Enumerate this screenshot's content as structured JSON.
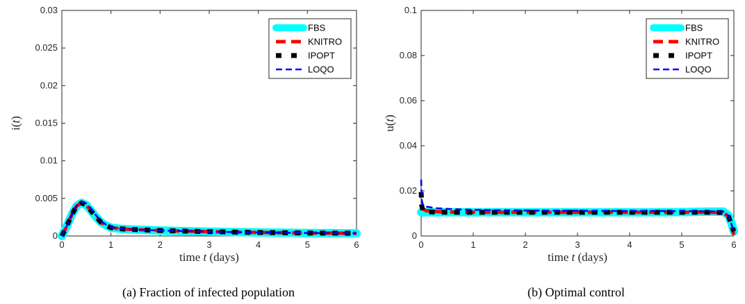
{
  "colors": {
    "FBS": "#00FFFF",
    "KNITRO": "#FF0000",
    "IPOPT": "#000000",
    "LOQO": "#0000FF"
  },
  "chart_data": [
    {
      "type": "line",
      "caption": "(a) Fraction of infected population",
      "xlabel_prefix": "time ",
      "xlabel_var": "t",
      "xlabel_suffix": " (days)",
      "ylabel_fn": "i(",
      "ylabel_var": "t",
      "ylabel_close": ")",
      "xlim": [
        0,
        6
      ],
      "ylim": [
        0,
        0.03
      ],
      "xticks": [
        "0",
        "1",
        "2",
        "3",
        "4",
        "5",
        "6"
      ],
      "yticks": [
        "0",
        "0.005",
        "0.01",
        "0.015",
        "0.02",
        "0.025",
        "0.03"
      ],
      "grid": false,
      "legend": "top-right",
      "series": [
        {
          "name": "FBS",
          "x": [
            0,
            0.1,
            0.2,
            0.3,
            0.4,
            0.5,
            0.6,
            0.7,
            0.8,
            0.9,
            1.0,
            1.2,
            1.4,
            1.6,
            1.8,
            2.0,
            2.5,
            3.0,
            3.5,
            4.0,
            4.5,
            5.0,
            5.5,
            6.0
          ],
          "y": [
            0,
            0.0013,
            0.0028,
            0.004,
            0.0044,
            0.0041,
            0.0033,
            0.0025,
            0.0018,
            0.0014,
            0.0011,
            0.00095,
            0.00088,
            0.00083,
            0.00078,
            0.00073,
            0.00065,
            0.00058,
            0.00052,
            0.00047,
            0.00043,
            0.0004,
            0.00038,
            0.00036
          ]
        },
        {
          "name": "KNITRO",
          "x": [
            0,
            0.1,
            0.2,
            0.3,
            0.4,
            0.5,
            0.6,
            0.7,
            0.8,
            0.9,
            1.0,
            1.2,
            1.4,
            1.6,
            1.8,
            2.0,
            2.5,
            3.0,
            3.5,
            4.0,
            4.5,
            5.0,
            5.5,
            6.0
          ],
          "y": [
            0,
            0.0013,
            0.0028,
            0.004,
            0.0044,
            0.0041,
            0.0033,
            0.0025,
            0.0018,
            0.0014,
            0.0011,
            0.00095,
            0.00088,
            0.00083,
            0.00078,
            0.00073,
            0.00065,
            0.00058,
            0.00052,
            0.00047,
            0.00043,
            0.0004,
            0.00038,
            0.00036
          ]
        },
        {
          "name": "IPOPT",
          "x": [
            0,
            0.1,
            0.2,
            0.3,
            0.4,
            0.5,
            0.6,
            0.7,
            0.8,
            0.9,
            1.0,
            1.2,
            1.4,
            1.6,
            1.8,
            2.0,
            2.5,
            3.0,
            3.5,
            4.0,
            4.5,
            5.0,
            5.5,
            6.0
          ],
          "y": [
            0,
            0.0013,
            0.0028,
            0.004,
            0.0044,
            0.0041,
            0.0033,
            0.0025,
            0.0018,
            0.0014,
            0.0011,
            0.00095,
            0.00088,
            0.00083,
            0.00078,
            0.00073,
            0.00065,
            0.00058,
            0.00052,
            0.00047,
            0.00043,
            0.0004,
            0.00038,
            0.00036
          ]
        },
        {
          "name": "LOQO",
          "x": [
            0,
            0.1,
            0.2,
            0.3,
            0.4,
            0.5,
            0.6,
            0.7,
            0.8,
            0.9,
            1.0,
            1.2,
            1.4,
            1.6,
            1.8,
            2.0,
            2.5,
            3.0,
            3.5,
            4.0,
            4.5,
            5.0,
            5.5,
            6.0
          ],
          "y": [
            0,
            0.0013,
            0.0028,
            0.004,
            0.0045,
            0.0043,
            0.0036,
            0.0027,
            0.002,
            0.0015,
            0.0012,
            0.00098,
            0.00088,
            0.00083,
            0.00078,
            0.00073,
            0.00065,
            0.00058,
            0.00052,
            0.00047,
            0.00043,
            0.0004,
            0.00038,
            0.00036
          ]
        }
      ]
    },
    {
      "type": "line",
      "caption": "(b) Optimal control",
      "xlabel_prefix": "time ",
      "xlabel_var": "t",
      "xlabel_suffix": " (days)",
      "ylabel_fn": "u(",
      "ylabel_var": "t",
      "ylabel_close": ")",
      "xlim": [
        0,
        6
      ],
      "ylim": [
        0,
        0.1
      ],
      "xticks": [
        "0",
        "1",
        "2",
        "3",
        "4",
        "5",
        "6"
      ],
      "yticks": [
        "0",
        "0.02",
        "0.04",
        "0.06",
        "0.08",
        "0.1"
      ],
      "grid": false,
      "legend": "top-right",
      "series": [
        {
          "name": "FBS",
          "x": [
            0,
            0.5,
            1,
            1.5,
            2,
            2.5,
            3,
            3.5,
            4,
            4.5,
            5,
            5.5,
            5.8,
            5.9,
            5.95,
            6.0
          ],
          "y": [
            0.0105,
            0.0105,
            0.0105,
            0.0105,
            0.0105,
            0.0105,
            0.0105,
            0.0105,
            0.0105,
            0.0105,
            0.0106,
            0.0108,
            0.0108,
            0.009,
            0.006,
            0.002
          ]
        },
        {
          "name": "KNITRO",
          "x": [
            0,
            0.03,
            0.1,
            0.3,
            0.6,
            1,
            1.5,
            2,
            2.5,
            3,
            3.5,
            4,
            4.5,
            5,
            5.5,
            5.8,
            5.9,
            5.95,
            6.0
          ],
          "y": [
            0.013,
            0.012,
            0.0112,
            0.0108,
            0.0106,
            0.0105,
            0.0105,
            0.0105,
            0.0105,
            0.0105,
            0.0105,
            0.0105,
            0.0105,
            0.0105,
            0.0105,
            0.0104,
            0.0085,
            0.005,
            0.0005
          ]
        },
        {
          "name": "IPOPT",
          "x": [
            0,
            0.01,
            0.03,
            0.1,
            0.3,
            0.6,
            1,
            1.5,
            2,
            2.5,
            3,
            3.5,
            4,
            4.5,
            5,
            5.5,
            5.8,
            5.9,
            5.95,
            6.0
          ],
          "y": [
            0.0195,
            0.0135,
            0.0115,
            0.0108,
            0.0106,
            0.0105,
            0.0105,
            0.0105,
            0.0105,
            0.0105,
            0.0105,
            0.0105,
            0.0105,
            0.0105,
            0.0105,
            0.0105,
            0.0104,
            0.0085,
            0.005,
            0.002
          ]
        },
        {
          "name": "LOQO",
          "x": [
            0,
            0.01,
            0.03,
            0.1,
            0.3,
            0.6,
            1,
            1.5,
            2,
            2.5,
            3,
            3.5,
            4,
            4.5,
            5,
            5.5,
            5.8,
            5.9,
            5.95,
            6.0
          ],
          "y": [
            0.025,
            0.016,
            0.014,
            0.013,
            0.0123,
            0.0119,
            0.0116,
            0.0114,
            0.0113,
            0.0112,
            0.0112,
            0.0111,
            0.0111,
            0.0111,
            0.011,
            0.011,
            0.0108,
            0.0088,
            0.0055,
            0.0015
          ]
        }
      ]
    }
  ]
}
